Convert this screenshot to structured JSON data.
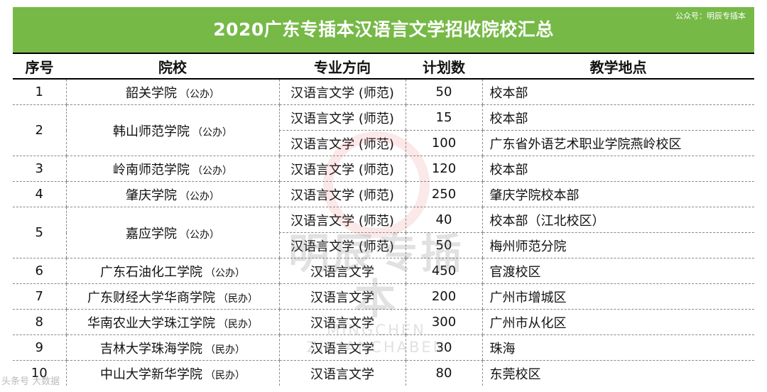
{
  "header": {
    "title": "2020广东专插本汉语言文学招收院校汇总",
    "account": "公众号：明辰专插本"
  },
  "columns": [
    "序号",
    "院校",
    "专业方向",
    "计划数",
    "教学地点"
  ],
  "rows": [
    {
      "no": "1",
      "school": "韶关学院",
      "type": "（公办）",
      "entries": [
        {
          "major": "汉语言文学 (师范)",
          "plan": "50",
          "location": "校本部"
        }
      ]
    },
    {
      "no": "2",
      "school": "韩山师范学院",
      "type": "（公办）",
      "entries": [
        {
          "major": "汉语言文学 (师范)",
          "plan": "15",
          "location": "校本部"
        },
        {
          "major": "汉语言文学 (师范)",
          "plan": "100",
          "location": "广东省外语艺术职业学院燕岭校区"
        }
      ]
    },
    {
      "no": "3",
      "school": "岭南师范学院",
      "type": "（公办）",
      "entries": [
        {
          "major": "汉语言文学 (师范)",
          "plan": "120",
          "location": "校本部"
        }
      ]
    },
    {
      "no": "4",
      "school": "肇庆学院",
      "type": "（公办）",
      "entries": [
        {
          "major": "汉语言文学 (师范)",
          "plan": "250",
          "location": "肇庆学院校本部"
        }
      ]
    },
    {
      "no": "5",
      "school": "嘉应学院",
      "type": "（公办）",
      "entries": [
        {
          "major": "汉语言文学 (师范)",
          "plan": "40",
          "location": "校本部（江北校区）"
        },
        {
          "major": "汉语言文学 (师范)",
          "plan": "50",
          "location": "梅州师范分院"
        }
      ]
    },
    {
      "no": "6",
      "school": "广东石油化工学院",
      "type": "（公办）",
      "entries": [
        {
          "major": "汉语言文学",
          "plan": "450",
          "location": "官渡校区"
        }
      ]
    },
    {
      "no": "7",
      "school": "广东财经大学华商学院",
      "type": "（民办）",
      "entries": [
        {
          "major": "汉语言文学",
          "plan": "200",
          "location": "广州市增城区"
        }
      ]
    },
    {
      "no": "8",
      "school": "华南农业大学珠江学院",
      "type": "（民办）",
      "entries": [
        {
          "major": "汉语言文学",
          "plan": "300",
          "location": "广州市从化区"
        }
      ]
    },
    {
      "no": "9",
      "school": "吉林大学珠海学院",
      "type": "（民办）",
      "entries": [
        {
          "major": "汉语言文学",
          "plan": "30",
          "location": "珠海"
        }
      ]
    },
    {
      "no": "10",
      "school": "中山大学新华学院",
      "type": "（民办）",
      "entries": [
        {
          "major": "汉语言文学",
          "plan": "80",
          "location": "东莞校区"
        }
      ]
    }
  ],
  "watermark": {
    "cn": "明辰专插本",
    "en": "MINGCHEN ZHUANCHABEN"
  },
  "corner_mark": "头条号 大数据"
}
